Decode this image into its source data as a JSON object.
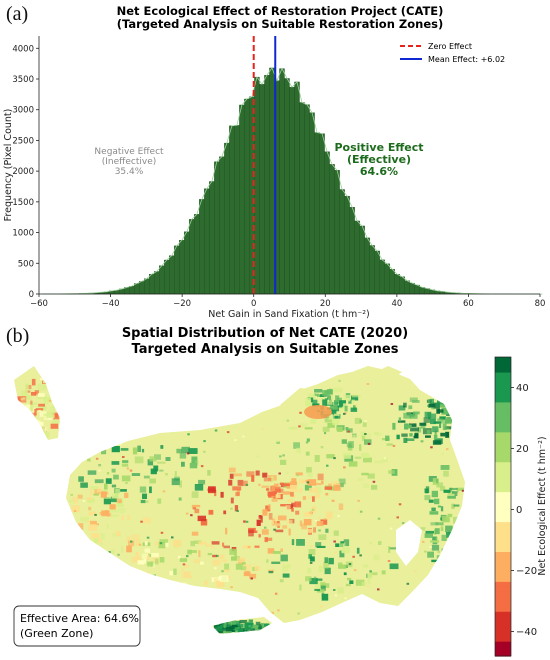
{
  "panels": {
    "a_label": "(a)",
    "b_label": "(b)"
  },
  "chart_data": [
    {
      "type": "bar",
      "title": "Net Ecological Effect of Restoration Project (CATE)",
      "subtitle": "(Targeted Analysis on Suitable Restoration Zones)",
      "xlabel": "Net Gain in Sand Fixation (t hm⁻²)",
      "ylabel": "Frequency (Pixel Count)",
      "xlim": [
        -60,
        80
      ],
      "ylim": [
        0,
        4200
      ],
      "xticks": [
        "−60",
        "−40",
        "−20",
        "0",
        "20",
        "40",
        "60",
        "80"
      ],
      "xtick_values": [
        -60,
        -40,
        -20,
        0,
        20,
        40,
        60,
        80
      ],
      "yticks": [
        "0",
        "500",
        "1000",
        "1500",
        "2000",
        "2500",
        "3000",
        "3500",
        "4000"
      ],
      "ytick_values": [
        0,
        500,
        1000,
        1500,
        2000,
        2500,
        3000,
        3500,
        4000
      ],
      "bar_color": "#2e6b2e",
      "distribution": {
        "mean": 6.02,
        "sd": 15.6,
        "peak": 3600,
        "bin_width": 1.4
      },
      "zero_line": {
        "x": 0,
        "color": "#e8231c",
        "style": "dashed"
      },
      "mean_line": {
        "x": 6.02,
        "color": "#1027d4",
        "style": "solid"
      },
      "legend": {
        "placement": "top-right",
        "items": [
          "Zero Effect",
          "Mean Effect: +6.02"
        ]
      },
      "annotations": {
        "negative": [
          "Negative Effect",
          "(Ineffective)",
          "35.4%"
        ],
        "negative_color": "#8a8a8a",
        "positive": [
          "Positive Effect",
          "(Effective)",
          "64.6%"
        ],
        "positive_color": "#1d6b1d"
      }
    },
    {
      "type": "heatmap",
      "title": "Spatial Distribution of Net CATE (2020)",
      "subtitle": "Targeted Analysis on Suitable Zones",
      "colorbar_label": "Net Ecological Effect (t hm⁻²)",
      "colorbar_range": [
        -48,
        50
      ],
      "colorbar_ticks": [
        "−40",
        "−20",
        "0",
        "20",
        "40"
      ],
      "colorbar_tick_values": [
        -40,
        -20,
        0,
        20,
        40
      ],
      "colormap": [
        "#a50026",
        "#d73027",
        "#f46d43",
        "#fdae61",
        "#fee08b",
        "#ffffbf",
        "#d9ef8b",
        "#a6d96a",
        "#66bd63",
        "#1a9850",
        "#006837"
      ],
      "info_box": [
        "Effective Area: 64.6%",
        "(Green Zone)"
      ]
    }
  ]
}
